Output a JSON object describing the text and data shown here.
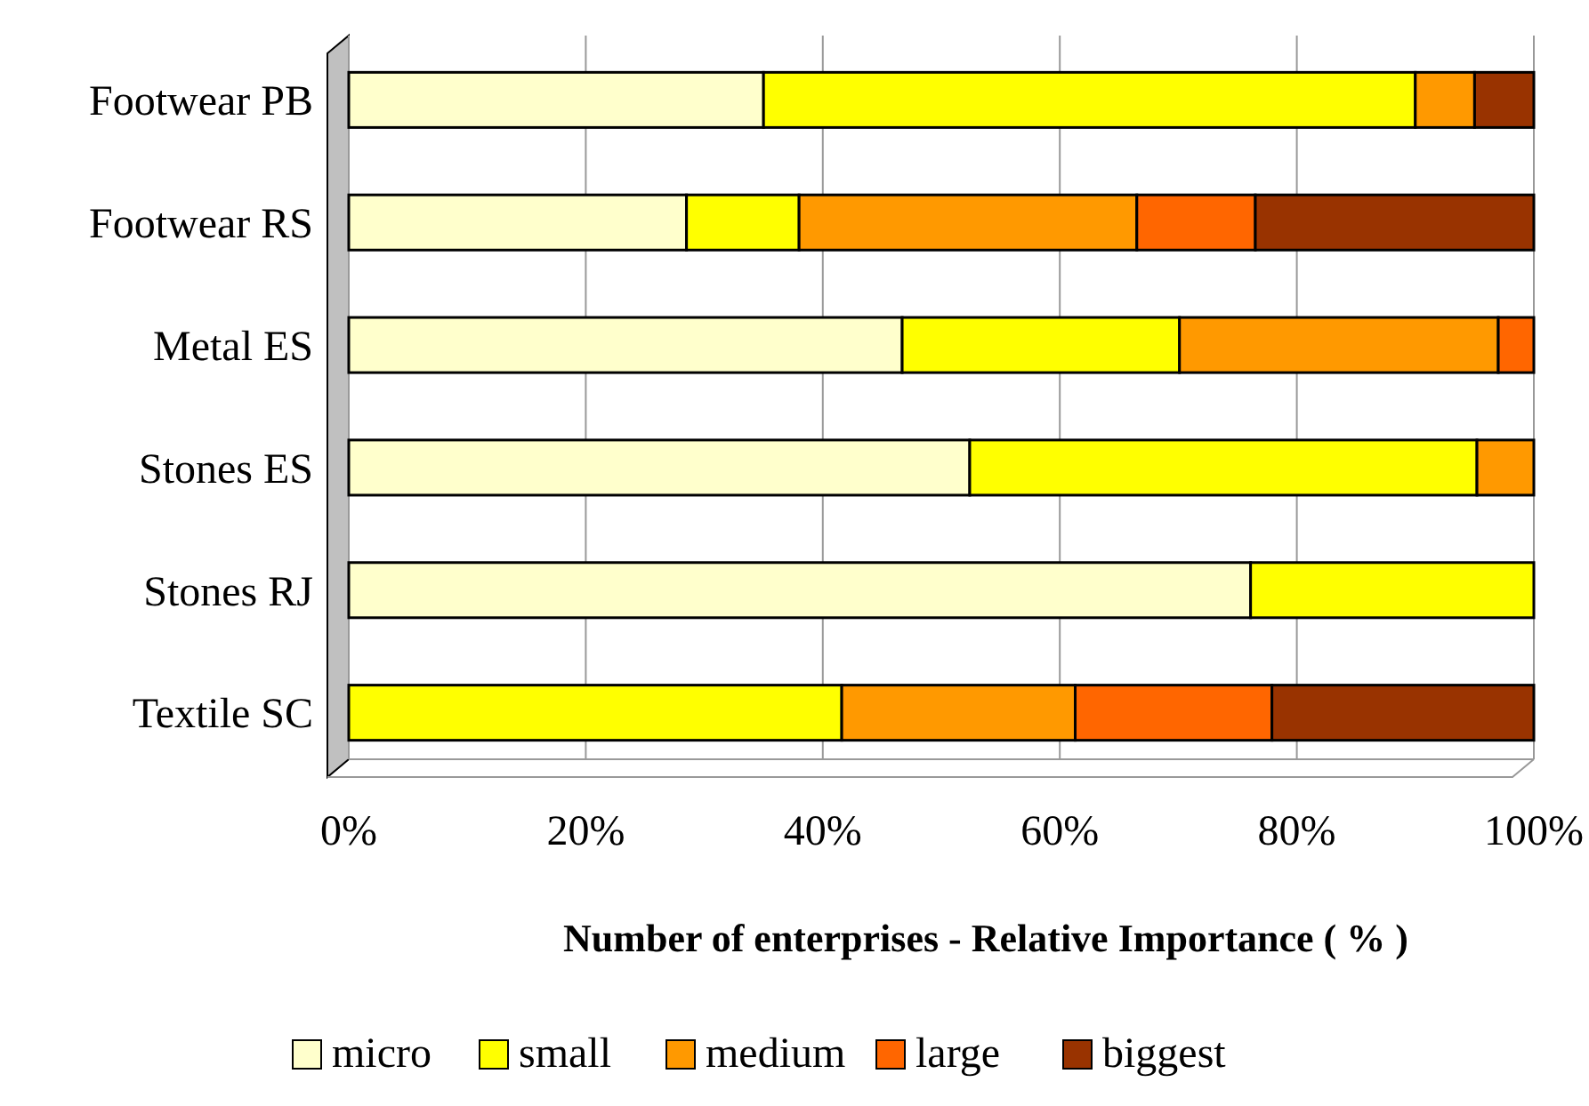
{
  "chart_data": {
    "type": "bar",
    "orientation": "horizontal",
    "stacked": true,
    "categories": [
      "Footwear PB",
      "Footwear RS",
      "Metal ES",
      "Stones ES",
      "Stones RJ",
      "Textile SC"
    ],
    "series": [
      {
        "name": "micro",
        "color": "#ffffcc",
        "values": [
          35,
          28.5,
          46.7,
          52.4,
          76.1,
          0
        ]
      },
      {
        "name": "small",
        "color": "#ffff00",
        "values": [
          55,
          9.5,
          23.4,
          42.8,
          23.9,
          41.6
        ]
      },
      {
        "name": "medium",
        "color": "#ff9900",
        "values": [
          5,
          28.5,
          26.9,
          4.8,
          0,
          19.7
        ]
      },
      {
        "name": "large",
        "color": "#ff6600",
        "values": [
          0,
          10,
          3,
          0,
          0,
          16.6
        ]
      },
      {
        "name": "biggest",
        "color": "#993300",
        "values": [
          5,
          23.5,
          0,
          0,
          0,
          22.1
        ]
      }
    ],
    "xlim": [
      0,
      100
    ],
    "xticks": [
      {
        "value": 0,
        "label": "0%"
      },
      {
        "value": 20,
        "label": "20%"
      },
      {
        "value": 40,
        "label": "40%"
      },
      {
        "value": 60,
        "label": "60%"
      },
      {
        "value": 80,
        "label": "80%"
      },
      {
        "value": 100,
        "label": "100%"
      }
    ],
    "xlabel": "Number of enterprises - Relative Importance ( % )",
    "grid": "x",
    "legend": "bottom"
  }
}
